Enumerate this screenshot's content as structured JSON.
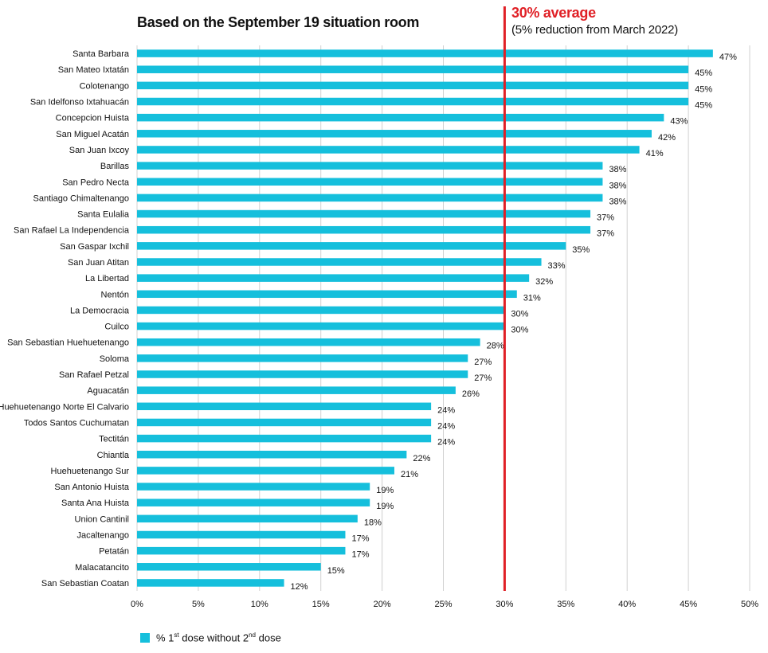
{
  "header": {
    "title": "Based on the September 19 situation room"
  },
  "average_annotation": {
    "title": "30% average",
    "subtitle": "(5% reduction from March 2022)"
  },
  "legend": {
    "label_prefix": "% 1",
    "sup1": "st",
    "label_middle": " dose without 2",
    "sup2": "nd",
    "label_suffix": " dose"
  },
  "colors": {
    "bar": "#15bfdc",
    "average_line": "#e02026",
    "grid": "#d0d0d0"
  },
  "chart_data": {
    "type": "bar",
    "orientation": "horizontal",
    "title": "Based on the September 19 situation room",
    "categories": [
      "Santa Barbara",
      "San Mateo Ixtatán",
      "Colotenango",
      "San Idelfonso Ixtahuacán",
      "Concepcion Huista",
      "San Miguel Acatán",
      "San Juan Ixcoy",
      "Barillas",
      "San Pedro Necta",
      "Santiago Chimaltenango",
      "Santa Eulalia",
      "San Rafael La Independencia",
      "San Gaspar Ixchil",
      "San Juan Atitan",
      "La Libertad",
      "Nentón",
      "La Democracia",
      "Cuilco",
      "San Sebastian Huehuetenango",
      "Soloma",
      "San Rafael Petzal",
      "Aguacatán",
      "Huehuetenango Norte El Calvario",
      "Todos Santos Cuchumatan",
      "Tectitán",
      "Chiantla",
      "Huehuetenango Sur",
      "San Antonio Huista",
      "Santa Ana Huista",
      "Union Cantinil",
      "Jacaltenango",
      "Petatán",
      "Malacatancito",
      "San Sebastian Coatan"
    ],
    "values": [
      47,
      45,
      45,
      45,
      43,
      42,
      41,
      38,
      38,
      38,
      37,
      37,
      35,
      33,
      32,
      31,
      30,
      30,
      28,
      27,
      27,
      26,
      24,
      24,
      24,
      22,
      21,
      19,
      19,
      18,
      17,
      17,
      15,
      12
    ],
    "value_labels": [
      "47%",
      "45%",
      "45%",
      "45%",
      "43%",
      "42%",
      "41%",
      "38%",
      "38%",
      "38%",
      "37%",
      "37%",
      "35%",
      "33%",
      "32%",
      "31%",
      "30%",
      "30%",
      "28%",
      "27%",
      "27%",
      "26%",
      "24%",
      "24%",
      "24%",
      "22%",
      "21%",
      "19%",
      "19%",
      "18%",
      "17%",
      "17%",
      "15%",
      "12%"
    ],
    "x_ticks": [
      0,
      5,
      10,
      15,
      20,
      25,
      30,
      35,
      40,
      45,
      50
    ],
    "x_tick_labels": [
      "0%",
      "5%",
      "10%",
      "15%",
      "20%",
      "25%",
      "30%",
      "35%",
      "40%",
      "45%",
      "50%"
    ],
    "xlim": [
      0,
      50
    ],
    "average_line": 30,
    "series_name": "% 1st dose without 2nd dose",
    "grid": true,
    "legend_position": "bottom-left"
  }
}
